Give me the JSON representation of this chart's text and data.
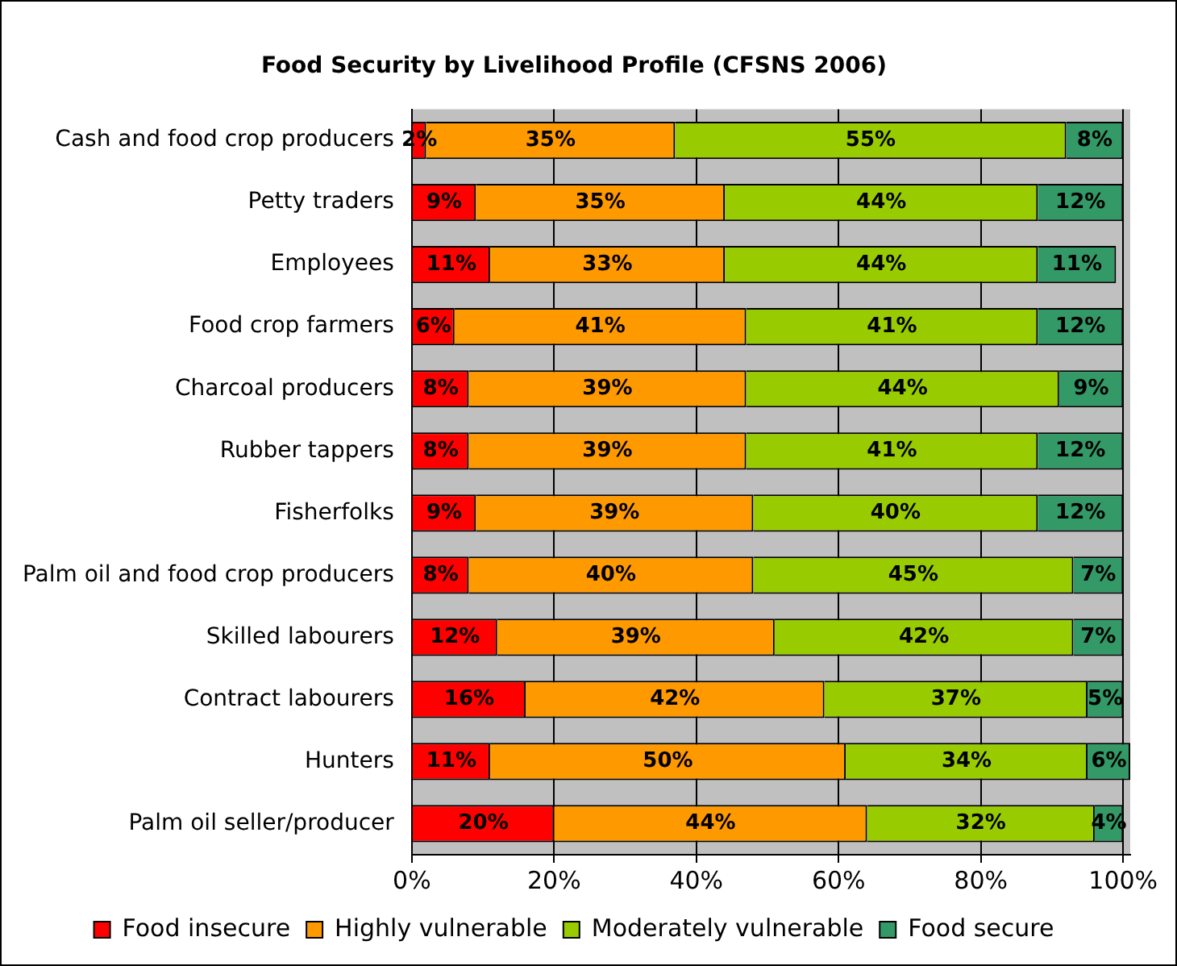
{
  "chart_data": {
    "type": "bar",
    "orientation": "horizontal",
    "stacked": true,
    "title": "Food Security by Livelihood Profile (CFSNS 2006)",
    "categories": [
      "Cash and food crop producers",
      "Petty traders",
      "Employees",
      "Food crop farmers",
      "Charcoal producers",
      "Rubber tappers",
      "Fisherfolks",
      "Palm oil and food crop producers",
      "Skilled labourers",
      "Contract labourers",
      "Hunters",
      "Palm oil seller/producer"
    ],
    "series": [
      {
        "name": "Food insecure",
        "color": "#ff0000",
        "values": [
          2,
          9,
          11,
          6,
          8,
          8,
          9,
          8,
          12,
          16,
          11,
          20
        ],
        "value_labels": [
          "2%",
          "9%",
          "11%",
          "6%",
          "8%",
          "8%",
          "9%",
          "8%",
          "12%",
          "16%",
          "11%",
          "20%"
        ]
      },
      {
        "name": "Highly vulnerable",
        "color": "#ff9900",
        "values": [
          35,
          35,
          33,
          41,
          39,
          39,
          39,
          40,
          39,
          42,
          50,
          44
        ],
        "value_labels": [
          "35%",
          "35%",
          "33%",
          "41%",
          "39%",
          "39%",
          "39%",
          "40%",
          "39%",
          "42%",
          "50%",
          "44%"
        ]
      },
      {
        "name": "Moderately vulnerable",
        "color": "#99cc00",
        "values": [
          55,
          44,
          44,
          41,
          44,
          41,
          40,
          45,
          42,
          37,
          34,
          32
        ],
        "value_labels": [
          "55%",
          "44%",
          "44%",
          "41%",
          "44%",
          "41%",
          "40%",
          "45%",
          "42%",
          "37%",
          "34%",
          "32%"
        ]
      },
      {
        "name": "Food secure",
        "color": "#339966",
        "values": [
          8,
          12,
          11,
          12,
          9,
          12,
          12,
          7,
          7,
          5,
          6,
          4
        ],
        "value_labels": [
          "8%",
          "12%",
          "11%",
          "12%",
          "9%",
          "12%",
          "12%",
          "7%",
          "7%",
          "5%",
          "6%",
          "4%"
        ]
      }
    ],
    "xlim": [
      0,
      101
    ],
    "xticks": [
      {
        "value": 0,
        "label": "0%"
      },
      {
        "value": 20,
        "label": "20%"
      },
      {
        "value": 40,
        "label": "40%"
      },
      {
        "value": 60,
        "label": "60%"
      },
      {
        "value": 80,
        "label": "80%"
      },
      {
        "value": 100,
        "label": "100%"
      }
    ],
    "grid": "x",
    "legend": "bottom"
  }
}
